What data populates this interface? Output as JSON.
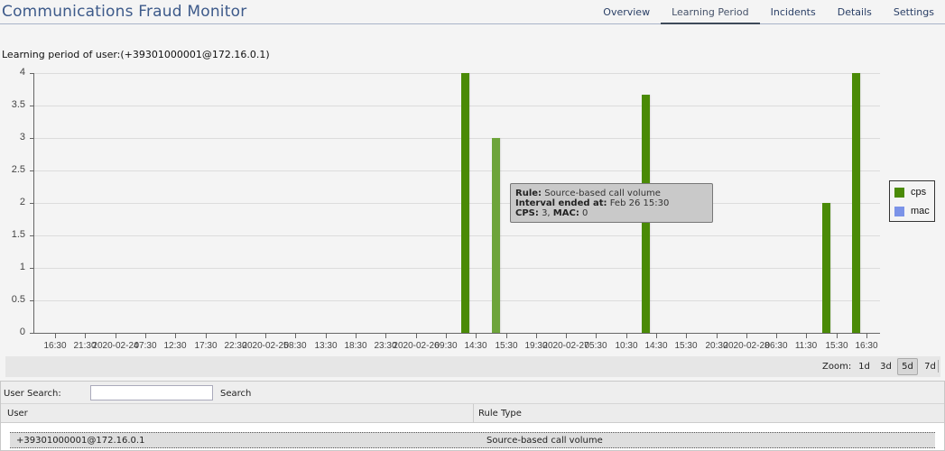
{
  "header": {
    "title": "Communications Fraud Monitor",
    "tabs": [
      {
        "label": "Overview",
        "active": false
      },
      {
        "label": "Learning Period",
        "active": true
      },
      {
        "label": "Incidents",
        "active": false
      },
      {
        "label": "Details",
        "active": false
      },
      {
        "label": "Settings",
        "active": false
      }
    ]
  },
  "subtitle": "Learning period of user:(+39301000001@172.16.0.1)",
  "colors": {
    "cps": "#4a8a06",
    "cps_highlight": "#6da43a",
    "mac": "#7b93e8",
    "title": "#3d5a8a"
  },
  "chart_data": {
    "type": "bar",
    "title": "Learning period of user:(+39301000001@172.16.0.1)",
    "ylabel": "",
    "xlabel": "",
    "ylim": [
      0,
      4
    ],
    "y_ticks": [
      "0",
      "0.5",
      "1",
      "1.5",
      "2",
      "2.5",
      "3",
      "3.5",
      "4"
    ],
    "x_ticks": [
      "16:30",
      "21:30",
      "2020-02-24",
      "07:30",
      "12:30",
      "17:30",
      "22:30",
      "2020-02-25",
      "08:30",
      "13:30",
      "18:30",
      "23:30",
      "2020-02-26",
      "09:30",
      "14:30",
      "15:30",
      "19:30",
      "2020-02-27",
      "05:30",
      "10:30",
      "14:30",
      "15:30",
      "20:30",
      "2020-02-28",
      "06:30",
      "11:30",
      "15:30",
      "16:30"
    ],
    "grid": true,
    "legend_position": "right",
    "legend": [
      "cps",
      "mac"
    ],
    "series": [
      {
        "name": "cps",
        "points": [
          {
            "tick_index": 14,
            "label": "Feb 26 14:30",
            "value": 4
          },
          {
            "tick_index": 15,
            "label": "Feb 26 15:30",
            "value": 3
          },
          {
            "tick_index": 20,
            "label": "Feb 27 14:30",
            "value": 3.67
          },
          {
            "tick_index": 26,
            "label": "Feb 28 15:30",
            "value": 2
          },
          {
            "tick_index": 27,
            "label": "Feb 28 16:30",
            "value": 4
          }
        ]
      },
      {
        "name": "mac",
        "points": []
      }
    ]
  },
  "tooltip": {
    "rule_label": "Rule:",
    "rule_value": "Source-based call volume",
    "interval_label": "Interval ended at:",
    "interval_value": "Feb 26 15:30",
    "cps_label": "CPS:",
    "cps_value": "3,",
    "mac_label": "MAC:",
    "mac_value": "0"
  },
  "zoom": {
    "label": "Zoom:",
    "options": [
      {
        "label": "1d",
        "active": false
      },
      {
        "label": "3d",
        "active": false
      },
      {
        "label": "5d",
        "active": true
      },
      {
        "label": "7d",
        "active": false
      }
    ]
  },
  "search": {
    "label": "User Search:",
    "value": "",
    "placeholder": "",
    "button": "Search"
  },
  "table": {
    "columns": [
      "User",
      "Rule Type"
    ],
    "rows": [
      [
        "+39301000001@172.16.0.1",
        "Source-based call volume"
      ]
    ]
  }
}
